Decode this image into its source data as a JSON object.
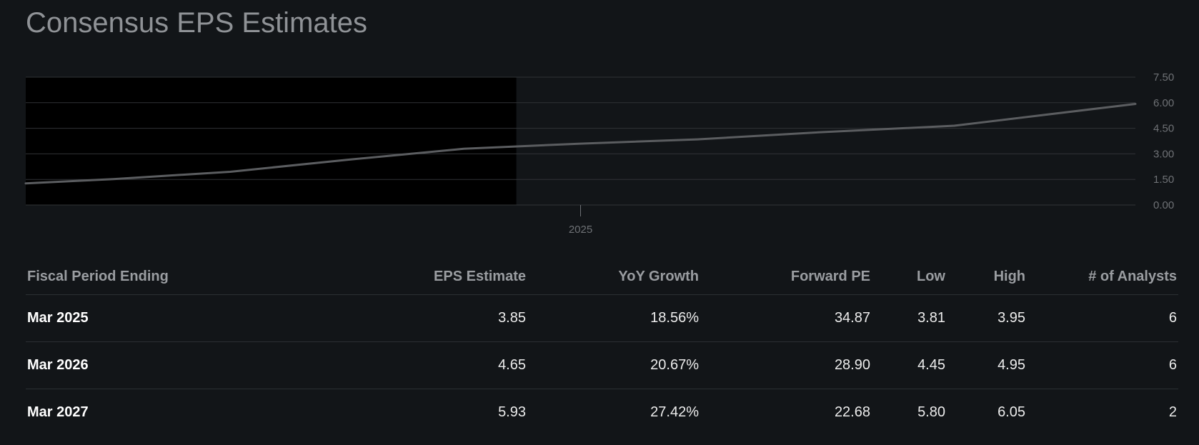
{
  "title": "Consensus EPS Estimates",
  "colors": {
    "background": "#121518",
    "shaded_region": "#000000",
    "line": "#5b5d60",
    "grid": "#303336",
    "tick_label": "#6e7175",
    "title": "#8f9296"
  },
  "chart_data": {
    "type": "line",
    "title": "",
    "xlabel": "",
    "ylabel": "",
    "ylim": [
      0,
      7.5
    ],
    "yticks": [
      "0.00",
      "1.50",
      "3.00",
      "4.50",
      "6.00",
      "7.50"
    ],
    "xticks": [
      "2025"
    ],
    "grid": true,
    "y_axis_position": "right",
    "series": [
      {
        "x": [
          -0.95,
          -0.8,
          -0.6,
          -0.4,
          -0.2,
          0.0,
          0.2,
          0.4,
          0.64,
          0.95
        ],
        "values": [
          1.27,
          1.52,
          1.95,
          2.65,
          3.3,
          3.6,
          3.85,
          4.25,
          4.65,
          5.93
        ]
      }
    ],
    "shaded_x_range": [
      -0.95,
      -0.11
    ]
  },
  "table": {
    "headers": [
      "Fiscal Period Ending",
      "EPS Estimate",
      "YoY Growth",
      "Forward PE",
      "Low",
      "High",
      "# of Analysts"
    ],
    "rows": [
      {
        "period": "Mar 2025",
        "eps": "3.85",
        "yoy": "18.56%",
        "pe": "34.87",
        "low": "3.81",
        "high": "3.95",
        "analysts": "6"
      },
      {
        "period": "Mar 2026",
        "eps": "4.65",
        "yoy": "20.67%",
        "pe": "28.90",
        "low": "4.45",
        "high": "4.95",
        "analysts": "6"
      },
      {
        "period": "Mar 2027",
        "eps": "5.93",
        "yoy": "27.42%",
        "pe": "22.68",
        "low": "5.80",
        "high": "6.05",
        "analysts": "2"
      }
    ]
  }
}
